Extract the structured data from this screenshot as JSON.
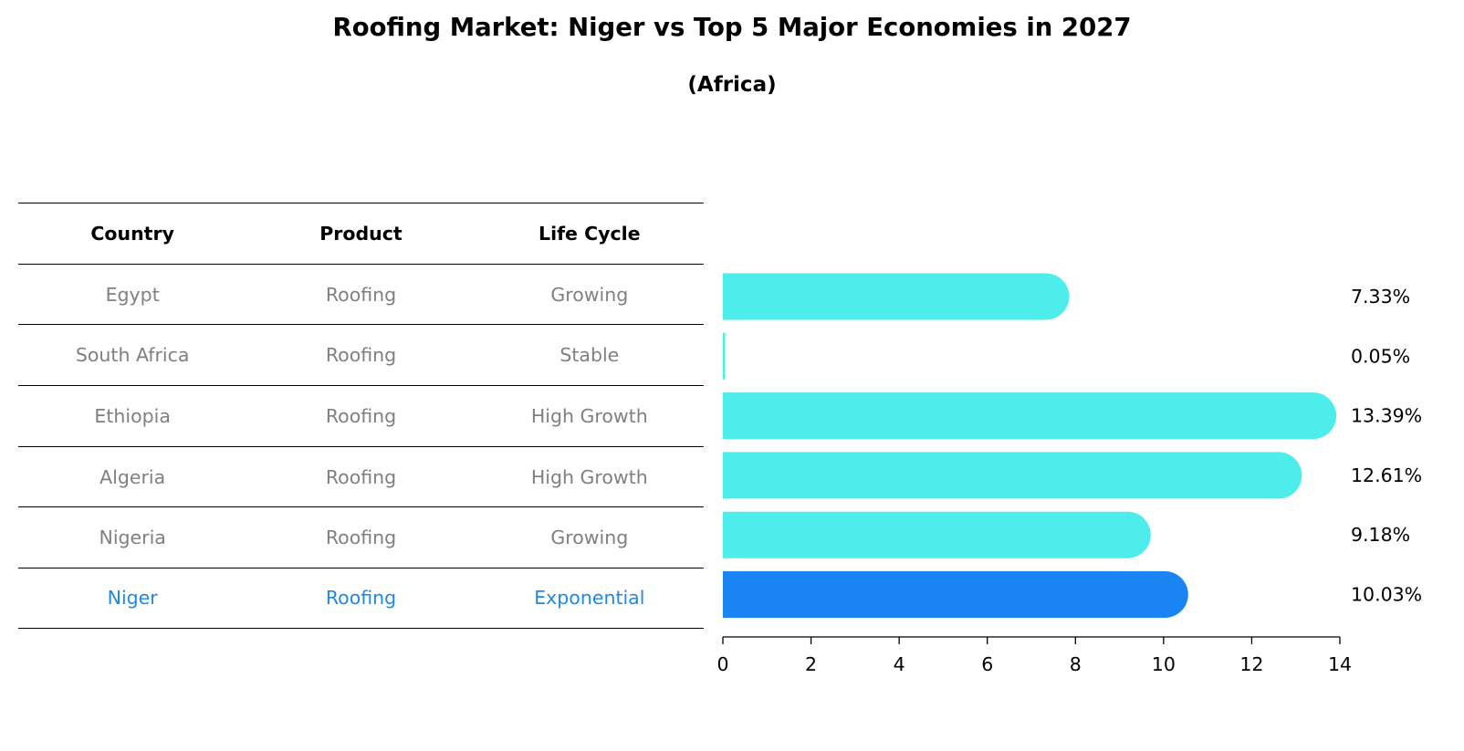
{
  "title": "Roofing Market: Niger vs Top 5 Major Economies in 2027",
  "subtitle": "(Africa)",
  "colors": {
    "default_bar": "#4CEDEA",
    "highlight_bar": "#1A84F3",
    "highlight_text": "#1E88E5",
    "muted_text": "#808080"
  },
  "table": {
    "headers": [
      "Country",
      "Product",
      "Life Cycle"
    ],
    "rows": [
      [
        "Egypt",
        "Roofing",
        "Growing"
      ],
      [
        "South Africa",
        "Roofing",
        "Stable"
      ],
      [
        "Ethiopia",
        "Roofing",
        "High Growth"
      ],
      [
        "Algeria",
        "Roofing",
        "High Growth"
      ],
      [
        "Nigeria",
        "Roofing",
        "Growing"
      ],
      [
        "Niger",
        "Roofing",
        "Exponential"
      ]
    ],
    "highlight_row": 5
  },
  "chart_data": {
    "type": "bar",
    "orientation": "horizontal",
    "categories": [
      "Egypt",
      "South Africa",
      "Ethiopia",
      "Algeria",
      "Nigeria",
      "Niger"
    ],
    "values": [
      7.33,
      0.05,
      13.39,
      12.61,
      9.18,
      10.03
    ],
    "value_labels": [
      "7.33%",
      "0.05%",
      "13.39%",
      "12.61%",
      "9.18%",
      "10.03%"
    ],
    "highlight_index": 5,
    "xlim": [
      0,
      14
    ],
    "xticks": [
      0,
      2,
      4,
      6,
      8,
      10,
      12,
      14
    ],
    "title": "Roofing Market: Niger vs Top 5 Major Economies in 2027",
    "subtitle": "(Africa)",
    "xlabel": "",
    "ylabel": "",
    "grid": false
  }
}
